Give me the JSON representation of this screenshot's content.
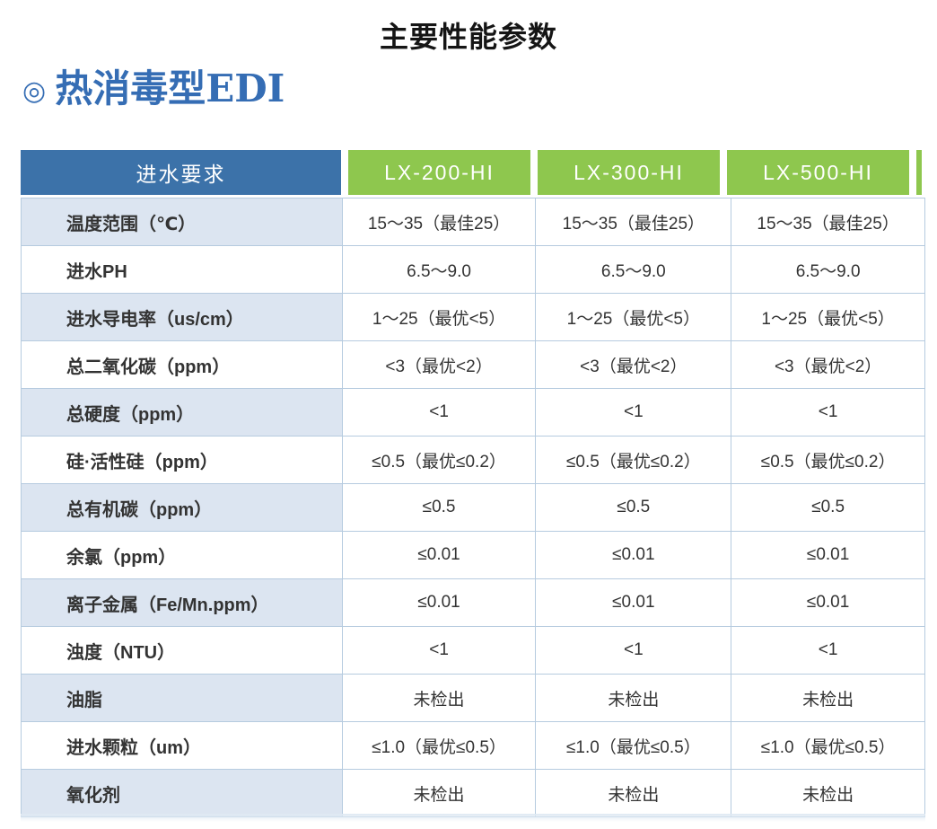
{
  "page": {
    "title": "主要性能参数",
    "section": {
      "marker": "◎",
      "title": "热消毒型EDI"
    }
  },
  "table": {
    "header": {
      "first_col": "进水要求",
      "models": [
        "LX-200-HI",
        "LX-300-HI",
        "LX-500-HI"
      ]
    },
    "rows": [
      {
        "label": "温度范围（℃）",
        "values": [
          "15～35（最佳25）",
          "15～35（最佳25）",
          "15～35（最佳25）"
        ]
      },
      {
        "label": "进水PH",
        "values": [
          "6.5～9.0",
          "6.5～9.0",
          "6.5～9.0"
        ]
      },
      {
        "label": "进水导电率（us/cm）",
        "values": [
          "1～25（最优<5）",
          "1～25（最优<5）",
          "1～25（最优<5）"
        ]
      },
      {
        "label": "总二氧化碳（ppm）",
        "values": [
          "<3（最优<2）",
          "<3（最优<2）",
          "<3（最优<2）"
        ]
      },
      {
        "label": "总硬度（ppm）",
        "values": [
          "<1",
          "<1",
          "<1"
        ]
      },
      {
        "label": "硅·活性硅（ppm）",
        "values": [
          "≤0.5（最优≤0.2）",
          "≤0.5（最优≤0.2）",
          "≤0.5（最优≤0.2）"
        ]
      },
      {
        "label": "总有机碳（ppm）",
        "values": [
          "≤0.5",
          "≤0.5",
          "≤0.5"
        ]
      },
      {
        "label": "余氯（ppm）",
        "values": [
          "≤0.01",
          "≤0.01",
          "≤0.01"
        ]
      },
      {
        "label": "离子金属（Fe/Mn.ppm）",
        "values": [
          "≤0.01",
          "≤0.01",
          "≤0.01"
        ]
      },
      {
        "label": "浊度（NTU）",
        "values": [
          "<1",
          "<1",
          "<1"
        ]
      },
      {
        "label": "油脂",
        "values": [
          "未检出",
          "未检出",
          "未检出"
        ]
      },
      {
        "label": "进水颗粒（um）",
        "values": [
          "≤1.0（最优≤0.5）",
          "≤1.0（最优≤0.5）",
          "≤1.0（最优≤0.5）"
        ]
      },
      {
        "label": "氧化剂",
        "values": [
          "未检出",
          "未检出",
          "未检出"
        ]
      }
    ]
  },
  "colors": {
    "header_blue": "#3c72a9",
    "header_green": "#8ec74e",
    "alt_row_bg": "#dce5f1",
    "border": "#b6cbdf",
    "section_title_blue": "#356db4",
    "text": "#333333"
  }
}
